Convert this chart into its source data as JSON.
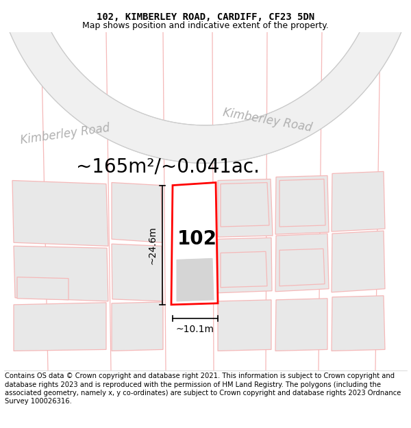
{
  "title_line1": "102, KIMBERLEY ROAD, CARDIFF, CF23 5DN",
  "title_line2": "Map shows position and indicative extent of the property.",
  "area_label": "~165m²/~0.041ac.",
  "number_label": "102",
  "dim_height": "~24.6m",
  "dim_width": "~10.1m",
  "road_label_left": "Kimberley Road",
  "road_label_right": "Kimberley Road",
  "footer_text": "Contains OS data © Crown copyright and database right 2021. This information is subject to Crown copyright and database rights 2023 and is reproduced with the permission of HM Land Registry. The polygons (including the associated geometry, namely x, y co-ordinates) are subject to Crown copyright and database rights 2023 Ordnance Survey 100026316.",
  "bg_color": "#ffffff",
  "map_bg": "#ffffff",
  "plot_color": "#ffffff",
  "plot_border": "#ff0000",
  "neighbor_fill": "#e8e8e8",
  "neighbor_border": "#f5b8b8",
  "road_fill": "#f0f0f0",
  "road_edge": "#cccccc",
  "grid_color": "#f5b8b8",
  "title_fontsize": 10,
  "subtitle_fontsize": 9,
  "area_fontsize": 20,
  "number_fontsize": 20,
  "road_fontsize": 12,
  "dim_fontsize": 10,
  "footer_fontsize": 7.2
}
